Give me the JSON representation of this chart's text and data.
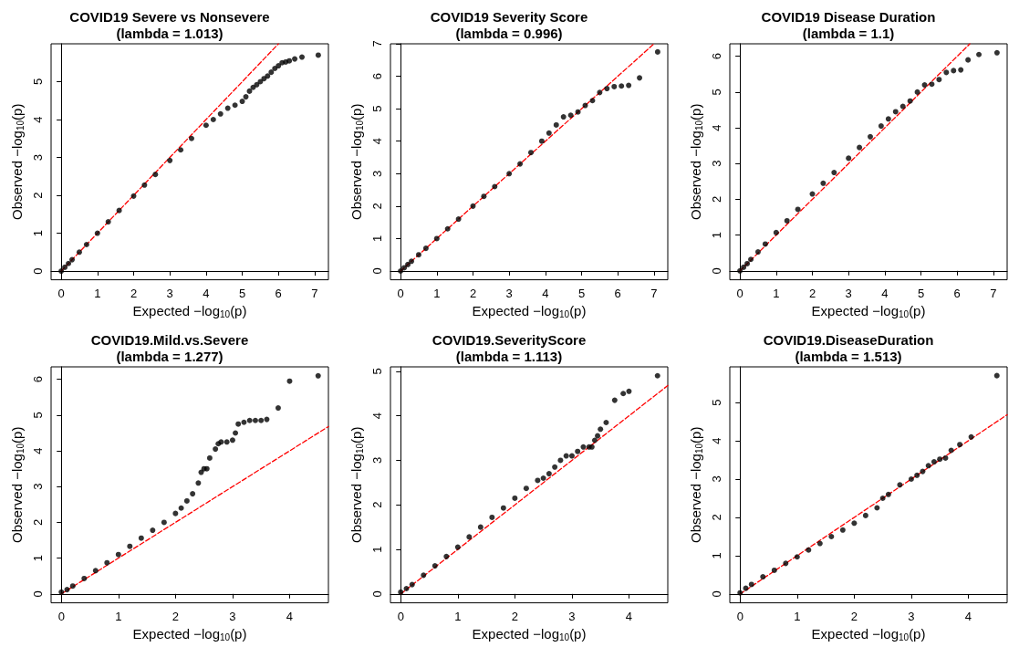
{
  "chart_data": [
    {
      "type": "scatter",
      "title": "COVID19 Severe vs Nonsevere",
      "subtitle": "(lambda = 1.013)",
      "xlabel": "Expected −log$_{10}$(p)",
      "ylabel": "Observed −log$_{10}$(p)",
      "xlim": [
        -0.28,
        7.38
      ],
      "ylim": [
        -0.23,
        6.0
      ],
      "xticks": [
        0,
        1,
        2,
        3,
        4,
        5,
        6,
        7
      ],
      "yticks": [
        0,
        1,
        2,
        3,
        4,
        5
      ],
      "series": [
        {
          "type": "line",
          "color": "#ff0000",
          "line_style": "dashed",
          "marker": "none",
          "x": [
            0,
            6.0
          ],
          "values": [
            0,
            6.0
          ]
        },
        {
          "color": "#000000",
          "marker": "circle",
          "x": [
            0,
            0.1,
            0.2,
            0.3,
            0.5,
            0.7,
            1,
            1.3,
            1.6,
            2,
            2.3,
            2.6,
            3,
            3.3,
            3.6,
            4,
            4.2,
            4.4,
            4.6,
            4.8,
            5,
            5.1,
            5.2,
            5.3,
            5.4,
            5.5,
            5.6,
            5.7,
            5.8,
            5.9,
            6,
            6.1,
            6.2,
            6.3,
            6.45,
            6.65,
            7.1
          ],
          "values": [
            0,
            0.1,
            0.2,
            0.3,
            0.5,
            0.7,
            1,
            1.3,
            1.6,
            1.98,
            2.27,
            2.55,
            2.92,
            3.2,
            3.5,
            3.85,
            4.0,
            4.15,
            4.3,
            4.38,
            4.48,
            4.6,
            4.75,
            4.85,
            4.92,
            5.0,
            5.08,
            5.15,
            5.25,
            5.35,
            5.42,
            5.5,
            5.52,
            5.55,
            5.6,
            5.65,
            5.7
          ]
        }
      ]
    },
    {
      "type": "scatter",
      "title": "COVID19 Severity Score",
      "subtitle": "(lambda = 0.996)",
      "xlabel": "Expected −log$_{10}$(p)",
      "ylabel": "Observed −log$_{10}$(p)",
      "xlim": [
        -0.28,
        7.38
      ],
      "ylim": [
        -0.27,
        7.0
      ],
      "xticks": [
        0,
        1,
        2,
        3,
        4,
        5,
        6,
        7
      ],
      "yticks": [
        0,
        1,
        2,
        3,
        4,
        5,
        6,
        7
      ],
      "series": [
        {
          "type": "line",
          "color": "#ff0000",
          "line_style": "dashed",
          "marker": "none",
          "x": [
            0,
            7.0
          ],
          "values": [
            0,
            7.0
          ]
        },
        {
          "color": "#000000",
          "marker": "circle",
          "x": [
            0,
            0.1,
            0.2,
            0.3,
            0.5,
            0.7,
            1,
            1.3,
            1.6,
            2,
            2.3,
            2.6,
            3,
            3.3,
            3.6,
            3.9,
            4.1,
            4.3,
            4.5,
            4.7,
            4.9,
            5.1,
            5.3,
            5.5,
            5.7,
            5.9,
            6.1,
            6.3,
            6.6,
            7.1
          ],
          "values": [
            0,
            0.1,
            0.2,
            0.3,
            0.5,
            0.7,
            1,
            1.3,
            1.6,
            2,
            2.3,
            2.6,
            3,
            3.3,
            3.65,
            4.0,
            4.25,
            4.5,
            4.75,
            4.8,
            4.9,
            5.1,
            5.25,
            5.5,
            5.62,
            5.68,
            5.7,
            5.72,
            5.95,
            6.75
          ]
        }
      ]
    },
    {
      "type": "scatter",
      "title": "COVID19 Disease Duration",
      "subtitle": "(lambda = 1.1)",
      "xlabel": "Expected −log$_{10}$(p)",
      "ylabel": "Observed −log$_{10}$(p)",
      "xlim": [
        -0.28,
        7.38
      ],
      "ylim": [
        -0.25,
        6.35
      ],
      "xticks": [
        0,
        1,
        2,
        3,
        4,
        5,
        6,
        7
      ],
      "yticks": [
        0,
        1,
        2,
        3,
        4,
        5,
        6
      ],
      "series": [
        {
          "type": "line",
          "color": "#ff0000",
          "line_style": "dashed",
          "marker": "none",
          "x": [
            0,
            6.35
          ],
          "values": [
            0,
            6.35
          ]
        },
        {
          "color": "#000000",
          "marker": "circle",
          "x": [
            0,
            0.1,
            0.2,
            0.3,
            0.5,
            0.7,
            1,
            1.3,
            1.6,
            2,
            2.3,
            2.6,
            3,
            3.3,
            3.6,
            3.9,
            4.1,
            4.3,
            4.5,
            4.7,
            4.9,
            5.1,
            5.3,
            5.5,
            5.7,
            5.9,
            6.1,
            6.3,
            6.6,
            7.1
          ],
          "values": [
            0,
            0.1,
            0.2,
            0.32,
            0.53,
            0.75,
            1.07,
            1.4,
            1.72,
            2.15,
            2.45,
            2.75,
            3.15,
            3.45,
            3.75,
            4.05,
            4.25,
            4.45,
            4.6,
            4.75,
            5.0,
            5.2,
            5.22,
            5.35,
            5.55,
            5.6,
            5.62,
            5.9,
            6.05,
            6.1
          ]
        }
      ]
    },
    {
      "type": "scatter",
      "title": "COVID19.Mild.vs.Severe",
      "subtitle": "(lambda = 1.277)",
      "xlabel": "Expected −log$_{10}$(p)",
      "ylabel": "Observed −log$_{10}$(p)",
      "xlim": [
        -0.18,
        4.68
      ],
      "ylim": [
        -0.25,
        6.35
      ],
      "xticks": [
        0,
        1,
        2,
        3,
        4
      ],
      "yticks": [
        0,
        1,
        2,
        3,
        4,
        5,
        6
      ],
      "series": [
        {
          "type": "line",
          "color": "#ff0000",
          "line_style": "dashed",
          "marker": "none",
          "x": [
            0,
            4.68
          ],
          "values": [
            0,
            4.68
          ]
        },
        {
          "color": "#000000",
          "marker": "circle",
          "x": [
            0,
            0.1,
            0.2,
            0.4,
            0.6,
            0.8,
            1,
            1.2,
            1.4,
            1.6,
            1.8,
            2,
            2.1,
            2.2,
            2.3,
            2.4,
            2.45,
            2.5,
            2.55,
            2.6,
            2.7,
            2.75,
            2.8,
            2.9,
            3.0,
            3.05,
            3.1,
            3.2,
            3.3,
            3.4,
            3.5,
            3.6,
            3.8,
            4.0,
            4.5
          ],
          "values": [
            0.05,
            0.12,
            0.22,
            0.43,
            0.65,
            0.87,
            1.1,
            1.33,
            1.56,
            1.78,
            2.0,
            2.25,
            2.4,
            2.6,
            2.8,
            3.1,
            3.4,
            3.5,
            3.5,
            3.8,
            4.05,
            4.2,
            4.25,
            4.25,
            4.3,
            4.5,
            4.75,
            4.8,
            4.85,
            4.85,
            4.85,
            4.88,
            5.2,
            5.95,
            6.1
          ]
        }
      ]
    },
    {
      "type": "scatter",
      "title": "COVID19.SeverityScore",
      "subtitle": "(lambda = 1.113)",
      "xlabel": "Expected −log$_{10}$(p)",
      "ylabel": "Observed −log$_{10}$(p)",
      "xlim": [
        -0.18,
        4.68
      ],
      "ylim": [
        -0.2,
        5.1
      ],
      "xticks": [
        0,
        1,
        2,
        3,
        4
      ],
      "yticks": [
        0,
        1,
        2,
        3,
        4,
        5
      ],
      "series": [
        {
          "type": "line",
          "color": "#ff0000",
          "line_style": "dashed",
          "marker": "none",
          "x": [
            0,
            4.68
          ],
          "values": [
            0,
            4.68
          ]
        },
        {
          "color": "#000000",
          "marker": "circle",
          "x": [
            0,
            0.1,
            0.2,
            0.4,
            0.6,
            0.8,
            1,
            1.2,
            1.4,
            1.6,
            1.8,
            2,
            2.2,
            2.4,
            2.5,
            2.6,
            2.7,
            2.8,
            2.9,
            3.0,
            3.1,
            3.2,
            3.3,
            3.35,
            3.4,
            3.45,
            3.5,
            3.6,
            3.75,
            3.9,
            4.0,
            4.5
          ],
          "values": [
            0.04,
            0.12,
            0.21,
            0.42,
            0.63,
            0.84,
            1.05,
            1.28,
            1.5,
            1.72,
            1.93,
            2.15,
            2.37,
            2.55,
            2.6,
            2.7,
            2.85,
            3.0,
            3.1,
            3.1,
            3.2,
            3.3,
            3.3,
            3.3,
            3.45,
            3.55,
            3.7,
            3.85,
            4.35,
            4.5,
            4.55,
            4.9
          ]
        }
      ]
    },
    {
      "type": "scatter",
      "title": "COVID19.DiseaseDuration",
      "subtitle": "(lambda = 1.513)",
      "xlabel": "Expected −log$_{10}$(p)",
      "ylabel": "Observed −log$_{10}$(p)",
      "xlim": [
        -0.18,
        4.68
      ],
      "ylim": [
        -0.23,
        5.93
      ],
      "xticks": [
        0,
        1,
        2,
        3,
        4
      ],
      "yticks": [
        0,
        1,
        2,
        3,
        4,
        5
      ],
      "series": [
        {
          "type": "line",
          "color": "#ff0000",
          "line_style": "dashed",
          "marker": "none",
          "x": [
            0,
            4.68
          ],
          "values": [
            0,
            4.68
          ]
        },
        {
          "color": "#000000",
          "marker": "circle",
          "x": [
            0,
            0.1,
            0.2,
            0.4,
            0.6,
            0.8,
            1,
            1.2,
            1.4,
            1.6,
            1.8,
            2,
            2.2,
            2.4,
            2.5,
            2.6,
            2.8,
            3.0,
            3.1,
            3.2,
            3.3,
            3.4,
            3.5,
            3.6,
            3.7,
            3.85,
            4.05,
            4.5
          ],
          "values": [
            0.03,
            0.15,
            0.25,
            0.45,
            0.62,
            0.8,
            0.97,
            1.15,
            1.32,
            1.5,
            1.67,
            1.85,
            2.05,
            2.25,
            2.5,
            2.6,
            2.85,
            3.0,
            3.1,
            3.2,
            3.35,
            3.45,
            3.52,
            3.55,
            3.75,
            3.9,
            4.1,
            5.7
          ]
        }
      ]
    }
  ]
}
